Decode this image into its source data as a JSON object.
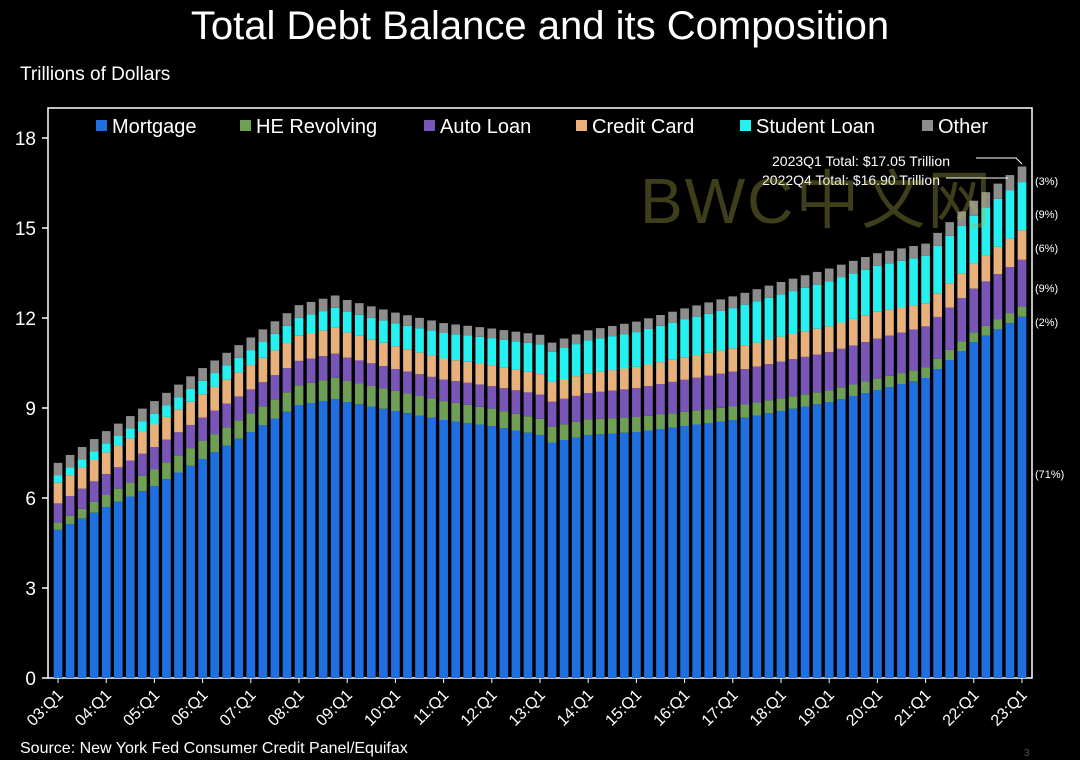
{
  "title": "Total Debt Balance and its Composition",
  "units": "Trillions of Dollars",
  "source": "Source: New York Fed Consumer Credit Panel/Equifax",
  "watermark": "BWC中文网",
  "page_number": "3",
  "annotations": [
    {
      "label": "2023Q1 Total: $17.05 Trillion"
    },
    {
      "label": "2022Q4 Total: $16.90 Trillion"
    }
  ],
  "shares": [
    "(3%)",
    "(9%)",
    "(6%)",
    "(9%)",
    "(2%)",
    "(71%)"
  ],
  "chart_data": {
    "type": "stacked_bar",
    "title": "Total Debt Balance and its Composition",
    "ylabel": "Trillions of Dollars",
    "ylim": [
      0,
      19
    ],
    "yticks": [
      0,
      3,
      6,
      9,
      12,
      15,
      18
    ],
    "xtick_labels": [
      "03:Q1",
      "04:Q1",
      "05:Q1",
      "06:Q1",
      "07:Q1",
      "08:Q1",
      "09:Q1",
      "10:Q1",
      "11:Q1",
      "12:Q1",
      "13:Q1",
      "14:Q1",
      "15:Q1",
      "16:Q1",
      "17:Q1",
      "18:Q1",
      "19:Q1",
      "20:Q1",
      "21:Q1",
      "22:Q1",
      "23:Q1"
    ],
    "legend": [
      "Mortgage",
      "HE Revolving",
      "Auto Loan",
      "Credit Card",
      "Student Loan",
      "Other"
    ],
    "colors": [
      "#1f6fe0",
      "#6e9f55",
      "#7a55b8",
      "#e8b07a",
      "#27f0f0",
      "#8c8c8c"
    ],
    "anchor_quarters": [
      "03:Q1",
      "04:Q1",
      "05:Q1",
      "06:Q1",
      "07:Q1",
      "08:Q1",
      "08:Q4",
      "09:Q1",
      "10:Q1",
      "11:Q1",
      "12:Q1",
      "13:Q1",
      "13:Q2",
      "14:Q1",
      "15:Q1",
      "16:Q1",
      "17:Q1",
      "18:Q1",
      "19:Q1",
      "20:Q1",
      "21:Q1",
      "22:Q1",
      "23:Q1"
    ],
    "series": [
      {
        "name": "Mortgage",
        "values": [
          4.94,
          5.7,
          6.4,
          7.3,
          8.2,
          9.1,
          9.3,
          9.2,
          8.9,
          8.6,
          8.4,
          8.1,
          7.85,
          8.1,
          8.2,
          8.4,
          8.6,
          8.9,
          9.2,
          9.6,
          10.0,
          11.2,
          12.04
        ]
      },
      {
        "name": "HE Revolving",
        "values": [
          0.24,
          0.4,
          0.55,
          0.6,
          0.62,
          0.66,
          0.71,
          0.7,
          0.67,
          0.63,
          0.58,
          0.54,
          0.53,
          0.52,
          0.5,
          0.47,
          0.45,
          0.42,
          0.39,
          0.38,
          0.35,
          0.32,
          0.34
        ]
      },
      {
        "name": "Auto Loan",
        "values": [
          0.64,
          0.7,
          0.75,
          0.78,
          0.8,
          0.81,
          0.8,
          0.78,
          0.73,
          0.72,
          0.75,
          0.81,
          0.83,
          0.88,
          0.96,
          1.07,
          1.16,
          1.23,
          1.27,
          1.33,
          1.37,
          1.46,
          1.56
        ]
      },
      {
        "name": "Credit Card",
        "values": [
          0.69,
          0.72,
          0.75,
          0.78,
          0.81,
          0.84,
          0.87,
          0.84,
          0.76,
          0.7,
          0.7,
          0.68,
          0.66,
          0.66,
          0.71,
          0.75,
          0.78,
          0.83,
          0.87,
          0.9,
          0.77,
          0.84,
          0.99
        ]
      },
      {
        "name": "Student Loan",
        "values": [
          0.24,
          0.3,
          0.36,
          0.45,
          0.5,
          0.6,
          0.66,
          0.68,
          0.76,
          0.85,
          0.9,
          0.99,
          1.0,
          1.1,
          1.16,
          1.26,
          1.34,
          1.41,
          1.49,
          1.53,
          1.58,
          1.59,
          1.6
        ]
      },
      {
        "name": "Other",
        "values": [
          0.42,
          0.41,
          0.42,
          0.42,
          0.42,
          0.42,
          0.41,
          0.4,
          0.36,
          0.33,
          0.32,
          0.32,
          0.31,
          0.33,
          0.35,
          0.37,
          0.39,
          0.41,
          0.43,
          0.42,
          0.41,
          0.5,
          0.52
        ]
      }
    ]
  }
}
